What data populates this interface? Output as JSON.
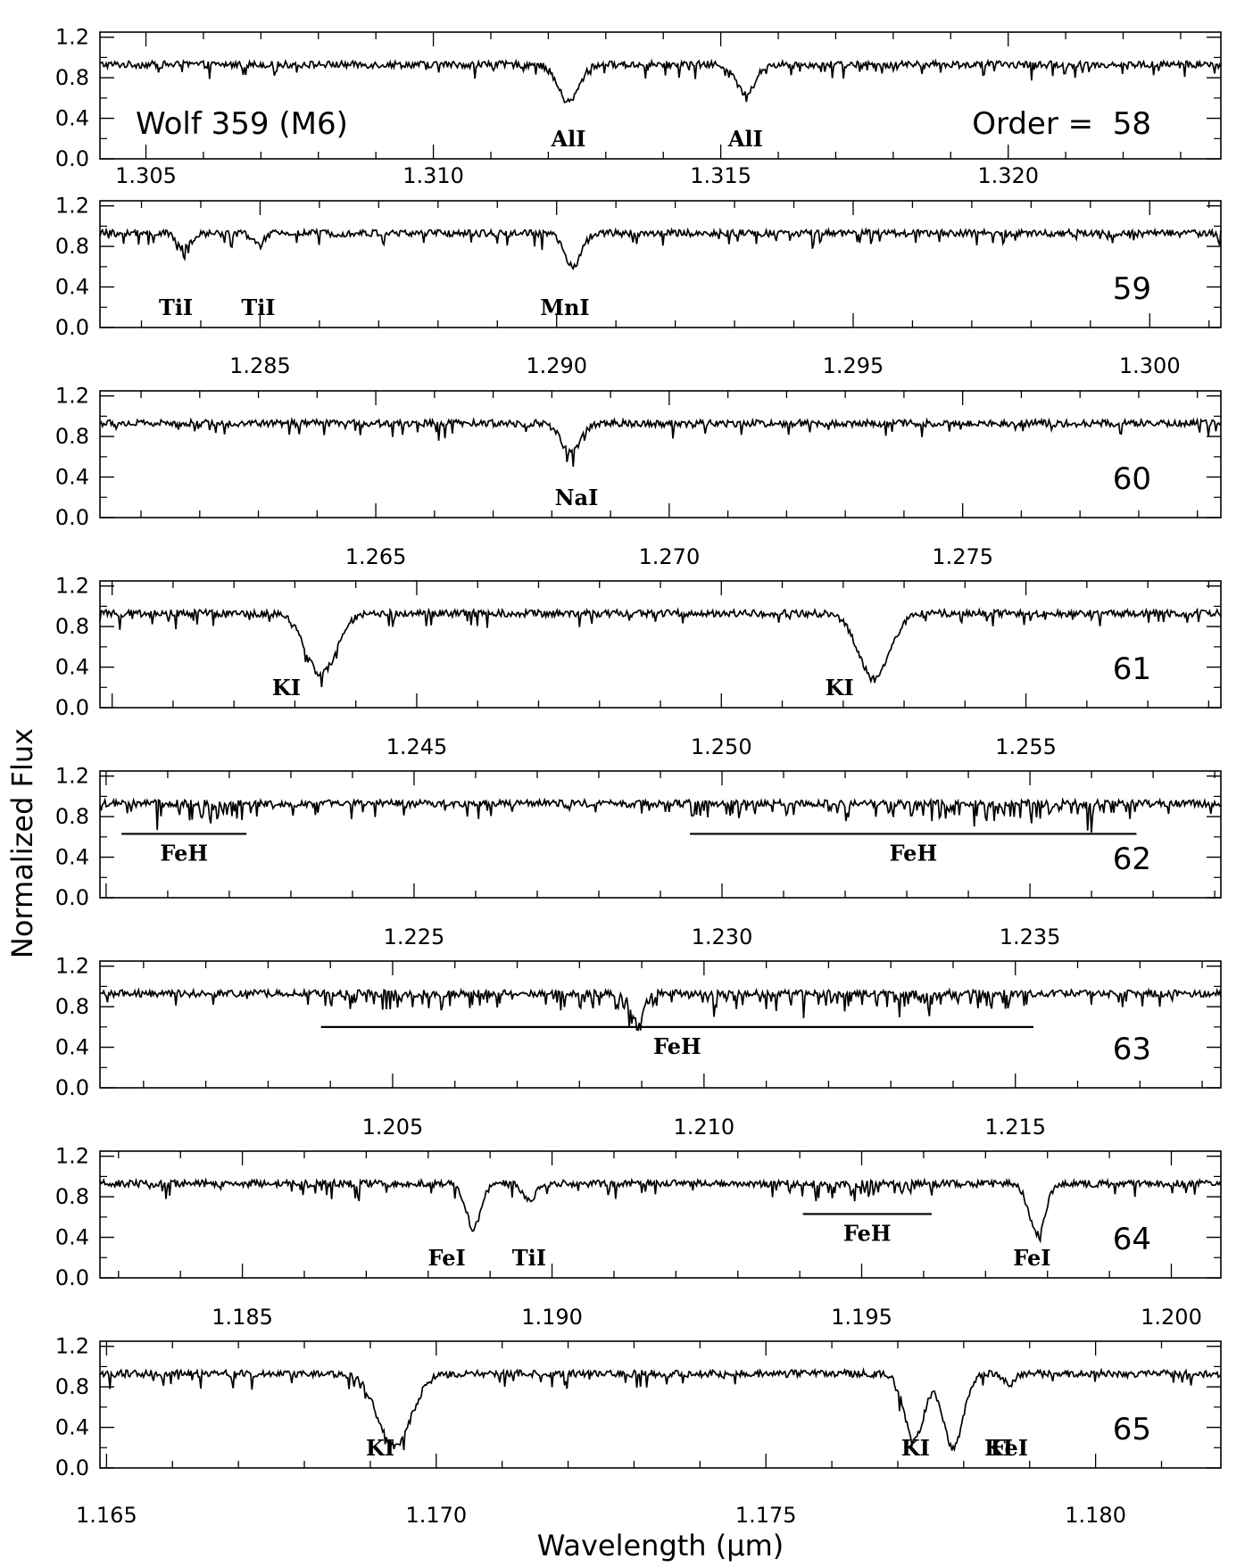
{
  "chart_data": {
    "type": "line",
    "xlabel": "Wavelength (μm)",
    "ylabel": "Normalized Flux",
    "yticks": [
      "0.0",
      "0.4",
      "0.8",
      "1.2"
    ],
    "ylim": [
      0.0,
      1.25
    ],
    "panels": [
      {
        "order": "58",
        "order_label": "Order =  58",
        "star_label": "Wolf 359 (M6)",
        "xlim": [
          1.3042,
          1.3237
        ],
        "xticks": [
          "1.305",
          "1.310",
          "1.315",
          "1.320"
        ],
        "features": [
          {
            "label": "AlI",
            "type": "line",
            "x": 1.31235,
            "depth": 0.56,
            "width": 0.00018
          },
          {
            "label": "AlI",
            "type": "line",
            "x": 1.31543,
            "depth": 0.64,
            "width": 0.00016
          }
        ],
        "bands": [],
        "extra_dips": []
      },
      {
        "order": "59",
        "xlim": [
          1.2823,
          1.3012
        ],
        "xticks": [
          "1.285",
          "1.290",
          "1.295",
          "1.300"
        ],
        "features": [
          {
            "label": "TiI",
            "type": "line",
            "x": 1.28373,
            "depth": 0.78,
            "width": 0.00012
          },
          {
            "label": "TiI",
            "type": "line",
            "x": 1.28497,
            "depth": 0.82,
            "width": 0.0001
          },
          {
            "label": "MnI",
            "type": "line",
            "x": 1.29027,
            "depth": 0.6,
            "width": 0.00014
          }
        ],
        "bands": [],
        "extra_dips": []
      },
      {
        "order": "60",
        "xlim": [
          1.2603,
          1.2794
        ],
        "xticks": [
          "1.265",
          "1.270",
          "1.275"
        ],
        "features": [
          {
            "label": "NaI",
            "type": "line",
            "x": 1.26832,
            "depth": 0.64,
            "width": 0.00016
          }
        ],
        "bands": [],
        "extra_dips": []
      },
      {
        "order": "61",
        "xlim": [
          1.2398,
          1.2582
        ],
        "xticks": [
          "1.245",
          "1.250",
          "1.255"
        ],
        "features": [
          {
            "label": "KI",
            "type": "line",
            "x": 1.24343,
            "depth": 0.33,
            "width": 0.00025
          },
          {
            "label": "KI",
            "type": "line",
            "x": 1.25251,
            "depth": 0.28,
            "width": 0.00025
          }
        ],
        "bands": [],
        "extra_dips": []
      },
      {
        "order": "62",
        "xlim": [
          1.2199,
          1.2381
        ],
        "xticks": [
          "1.225",
          "1.230",
          "1.235"
        ],
        "features": [],
        "bands": [
          {
            "label": "FeH",
            "x_start": 1.22025,
            "x_end": 1.22228,
            "y": 0.63
          },
          {
            "label": "FeH",
            "x_start": 1.22948,
            "x_end": 1.23673,
            "y": 0.63
          }
        ],
        "extra_dips": []
      },
      {
        "order": "63",
        "xlim": [
          1.2003,
          1.2183
        ],
        "xticks": [
          "1.205",
          "1.210",
          "1.215"
        ],
        "features": [],
        "bands": [
          {
            "label": "FeH",
            "x_start": 1.20385,
            "x_end": 1.21529,
            "y": 0.6
          }
        ],
        "extra_dips": [
          {
            "x": 1.20893,
            "depth": 0.66,
            "width": 0.0001
          }
        ]
      },
      {
        "order": "64",
        "xlim": [
          1.1827,
          1.2008
        ],
        "xticks": [
          "1.185",
          "1.190",
          "1.195",
          "1.200"
        ],
        "features": [
          {
            "label": "FeI",
            "type": "line",
            "x": 1.18873,
            "depth": 0.49,
            "width": 0.00012
          },
          {
            "label": "TiI",
            "type": "line",
            "x": 1.18963,
            "depth": 0.76,
            "width": 0.0001
          },
          {
            "label": "FeI",
            "type": "line",
            "x": 1.19783,
            "depth": 0.44,
            "width": 0.00013
          }
        ],
        "bands": [
          {
            "label": "FeH",
            "x_start": 1.19405,
            "x_end": 1.19613,
            "y": 0.63
          }
        ],
        "extra_dips": []
      },
      {
        "order": "65",
        "xlim": [
          1.1649,
          1.1819
        ],
        "xticks": [
          "1.165",
          "1.170",
          "1.175",
          "1.180"
        ],
        "features": [
          {
            "label": "KI",
            "type": "line",
            "x": 1.16937,
            "depth": 0.22,
            "width": 0.00025
          },
          {
            "label": "KI",
            "type": "line",
            "x": 1.17725,
            "depth": 0.29,
            "width": 0.00015
          },
          {
            "label": "KI",
            "type": "line",
            "x": 1.17784,
            "depth": 0.19,
            "width": 0.00015
          },
          {
            "label": "FeI",
            "type": "line",
            "x": 1.17869,
            "depth": 0.82,
            "width": 8e-05
          }
        ],
        "label_overrides": [
          {
            "label": "KI",
            "x": 1.16915
          },
          {
            "label": "KI",
            "x": 1.17727
          },
          {
            "label": "FeI",
            "x": 1.17853
          }
        ],
        "bands": [],
        "extra_dips": []
      }
    ]
  }
}
